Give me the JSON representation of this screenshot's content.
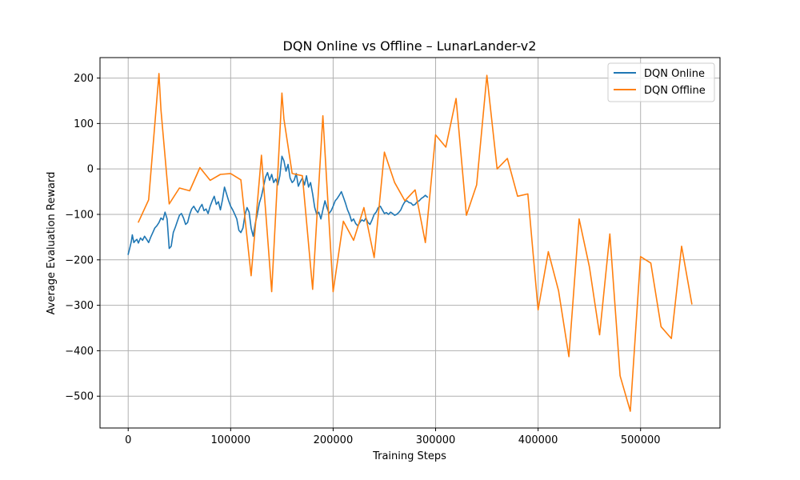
{
  "chart_data": {
    "type": "line",
    "title": "DQN Online vs Offline – LunarLander-v2",
    "xlabel": "Training Steps",
    "ylabel": "Average Evaluation Reward",
    "xlim": [
      -27500,
      577500
    ],
    "ylim": [
      -570,
      245
    ],
    "x_ticks": [
      0,
      100000,
      200000,
      300000,
      400000,
      500000
    ],
    "y_ticks": [
      -500,
      -400,
      -300,
      -200,
      -100,
      0,
      100,
      200
    ],
    "grid": true,
    "legend_position": "upper right",
    "series": [
      {
        "name": "DQN Online",
        "color": "#1f77b4",
        "x": [
          0,
          1500,
          3000,
          4000,
          5500,
          7000,
          8500,
          10000,
          12000,
          14000,
          16000,
          18000,
          20000,
          22000,
          24000,
          26000,
          28000,
          30000,
          32000,
          34000,
          36000,
          38000,
          40000,
          42000,
          44000,
          46000,
          48000,
          50000,
          52000,
          54000,
          56000,
          58000,
          60000,
          62000,
          64000,
          66000,
          68000,
          70000,
          72000,
          74000,
          76000,
          78000,
          80000,
          82000,
          84000,
          86000,
          88000,
          90000,
          92000,
          94000,
          96000,
          98000,
          100000,
          102000,
          104000,
          106000,
          108000,
          110000,
          112000,
          114000,
          116000,
          118000,
          120000,
          122000,
          124000,
          126000,
          128000,
          130000,
          132000,
          134000,
          136000,
          138000,
          140000,
          142000,
          144000,
          146000,
          148000,
          150000,
          152000,
          154000,
          156000,
          158000,
          160000,
          162000,
          164000,
          166000,
          168000,
          170000,
          172000,
          174000,
          176000,
          178000,
          180000,
          182000,
          184000,
          186000,
          188000,
          190000,
          192000,
          194000,
          196000,
          198000,
          200000,
          202000,
          204000,
          206000,
          208000,
          210000,
          212000,
          214000,
          216000,
          218000,
          220000,
          222000,
          224000,
          226000,
          228000,
          230000,
          232000,
          234000,
          236000,
          238000,
          240000,
          242000,
          244000,
          246000,
          248000,
          250000,
          252000,
          254000,
          256000,
          258000,
          260000,
          262000,
          264000,
          266000,
          268000,
          270000,
          272000,
          274000,
          276000,
          278000,
          280000,
          282000,
          284000,
          286000,
          288000,
          290000,
          292000
        ],
        "y": [
          -188,
          -175,
          -160,
          -145,
          -162,
          -158,
          -155,
          -163,
          -152,
          -157,
          -148,
          -155,
          -162,
          -150,
          -140,
          -130,
          -125,
          -118,
          -108,
          -112,
          -95,
          -110,
          -175,
          -170,
          -140,
          -128,
          -115,
          -102,
          -98,
          -108,
          -122,
          -118,
          -100,
          -88,
          -82,
          -90,
          -96,
          -85,
          -78,
          -92,
          -88,
          -98,
          -82,
          -70,
          -60,
          -78,
          -72,
          -90,
          -68,
          -40,
          -55,
          -70,
          -82,
          -90,
          -100,
          -110,
          -135,
          -140,
          -130,
          -100,
          -85,
          -95,
          -130,
          -148,
          -120,
          -100,
          -75,
          -60,
          -40,
          -18,
          -8,
          -25,
          -12,
          -30,
          -22,
          -35,
          -15,
          28,
          18,
          -5,
          10,
          -20,
          -30,
          -25,
          -10,
          -38,
          -28,
          -20,
          -35,
          -15,
          -40,
          -30,
          -55,
          -85,
          -100,
          -95,
          -110,
          -90,
          -70,
          -85,
          -98,
          -92,
          -82,
          -70,
          -65,
          -58,
          -50,
          -62,
          -75,
          -90,
          -100,
          -115,
          -110,
          -120,
          -125,
          -118,
          -112,
          -115,
          -108,
          -118,
          -122,
          -112,
          -100,
          -95,
          -85,
          -82,
          -90,
          -98,
          -96,
          -100,
          -95,
          -98,
          -102,
          -100,
          -96,
          -90,
          -80,
          -72,
          -70,
          -74,
          -75,
          -80,
          -78,
          -72,
          -70,
          -65,
          -62,
          -58,
          -62
        ]
      },
      {
        "name": "DQN Offline",
        "color": "#ff7f0e",
        "x": [
          10000,
          20000,
          30000,
          32000,
          40000,
          50000,
          60000,
          70000,
          80000,
          90000,
          100000,
          110000,
          120000,
          130000,
          140000,
          150000,
          152000,
          160000,
          170000,
          180000,
          190000,
          200000,
          210000,
          220000,
          230000,
          240000,
          250000,
          260000,
          270000,
          280000,
          290000,
          300000,
          310000,
          320000,
          330000,
          340000,
          350000,
          360000,
          370000,
          380000,
          390000,
          400000,
          410000,
          420000,
          430000,
          440000,
          450000,
          460000,
          470000,
          480000,
          490000,
          500000,
          510000,
          520000,
          530000,
          540000,
          550000
        ],
        "y": [
          -117,
          -68,
          210,
          130,
          -77,
          -42,
          -48,
          3,
          -25,
          -12,
          -10,
          -24,
          -235,
          30,
          -270,
          167,
          110,
          -10,
          -15,
          -265,
          117,
          -270,
          -115,
          -157,
          -85,
          -195,
          37,
          -30,
          -70,
          -46,
          -162,
          75,
          48,
          155,
          -102,
          -35,
          206,
          0,
          23,
          -60,
          -55,
          -310,
          -182,
          -268,
          -413,
          -110,
          -215,
          -365,
          -143,
          -455,
          -533,
          -193,
          -207,
          -347,
          -373,
          -170,
          -297
        ]
      }
    ]
  }
}
